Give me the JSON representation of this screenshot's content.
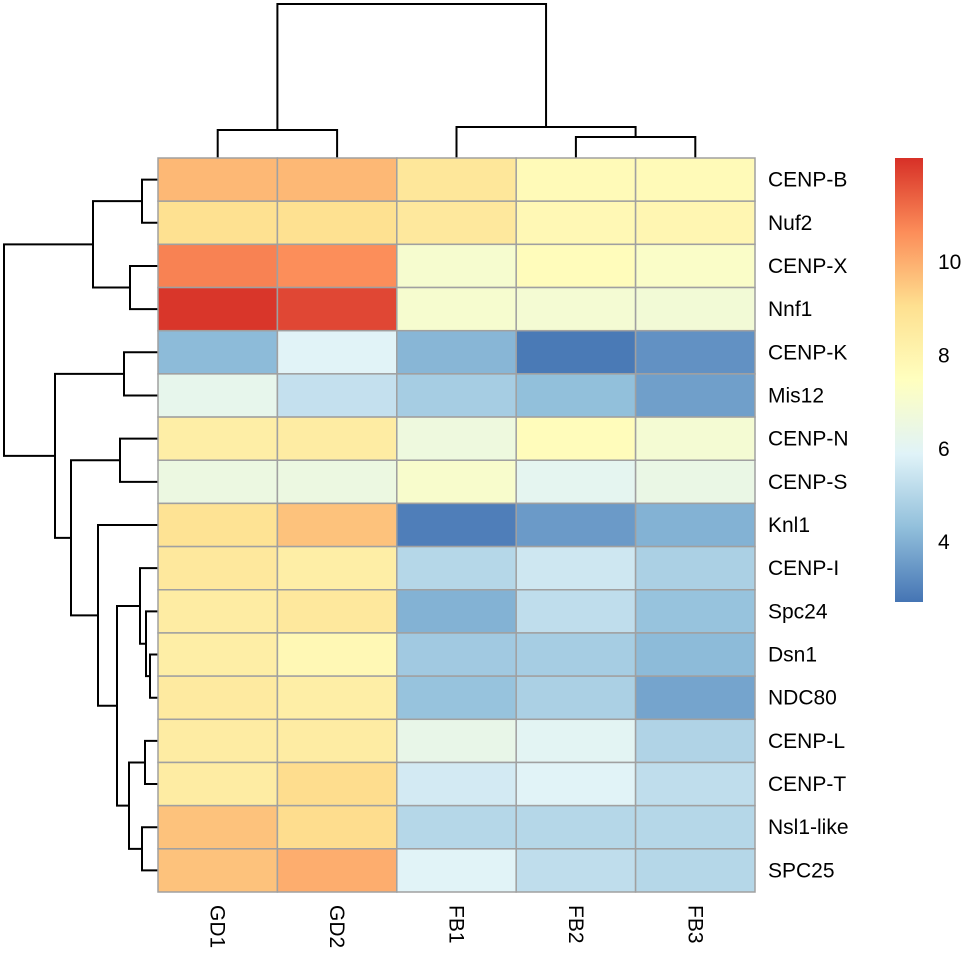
{
  "chart_data": {
    "type": "heatmap",
    "title": "",
    "columns": [
      "GD1",
      "GD2",
      "FB1",
      "FB2",
      "FB3"
    ],
    "rows": [
      "CENP-B",
      "Nuf2",
      "CENP-X",
      "Nnf1",
      "CENP-K",
      "Mis12",
      "CENP-N",
      "CENP-S",
      "Knl1",
      "CENP-I",
      "Spc24",
      "Dsn1",
      "NDC80",
      "CENP-L",
      "CENP-T",
      "Nsl1-like",
      "SPC25"
    ],
    "values": [
      [
        9.8,
        9.8,
        8.7,
        7.7,
        7.7
      ],
      [
        9.0,
        9.0,
        8.6,
        7.8,
        7.9
      ],
      [
        10.8,
        10.6,
        7.0,
        7.6,
        7.2
      ],
      [
        12.1,
        11.8,
        7.0,
        6.9,
        6.8
      ],
      [
        4.2,
        5.9,
        4.1,
        2.8,
        3.3
      ],
      [
        6.2,
        5.3,
        4.7,
        4.3,
        3.6
      ],
      [
        8.3,
        8.4,
        6.6,
        7.6,
        6.9
      ],
      [
        6.5,
        6.5,
        7.1,
        6.1,
        6.4
      ],
      [
        8.9,
        9.6,
        2.9,
        3.5,
        4.0
      ],
      [
        8.6,
        8.3,
        5.0,
        5.5,
        4.8
      ],
      [
        8.4,
        8.6,
        4.0,
        5.2,
        4.4
      ],
      [
        8.3,
        7.8,
        4.6,
        4.7,
        4.2
      ],
      [
        8.5,
        8.3,
        4.4,
        4.8,
        3.7
      ],
      [
        8.4,
        8.4,
        6.3,
        6.0,
        4.9
      ],
      [
        8.4,
        9.1,
        5.6,
        5.9,
        5.2
      ],
      [
        9.6,
        9.1,
        5.0,
        5.0,
        5.0
      ],
      [
        9.6,
        10.0,
        5.9,
        5.2,
        5.0
      ]
    ],
    "colorbar": {
      "range": [
        2.7,
        12.2
      ],
      "ticks": [
        "4",
        "6",
        "8",
        "10"
      ],
      "palette": [
        "#4575B4",
        "#91BFDB",
        "#E0F3F8",
        "#FFFFBF",
        "#FEE090",
        "#FC8D59",
        "#D73027"
      ]
    },
    "cell_border_color": "#A0A0A0",
    "row_dendrogram": true,
    "column_dendrogram": true
  }
}
